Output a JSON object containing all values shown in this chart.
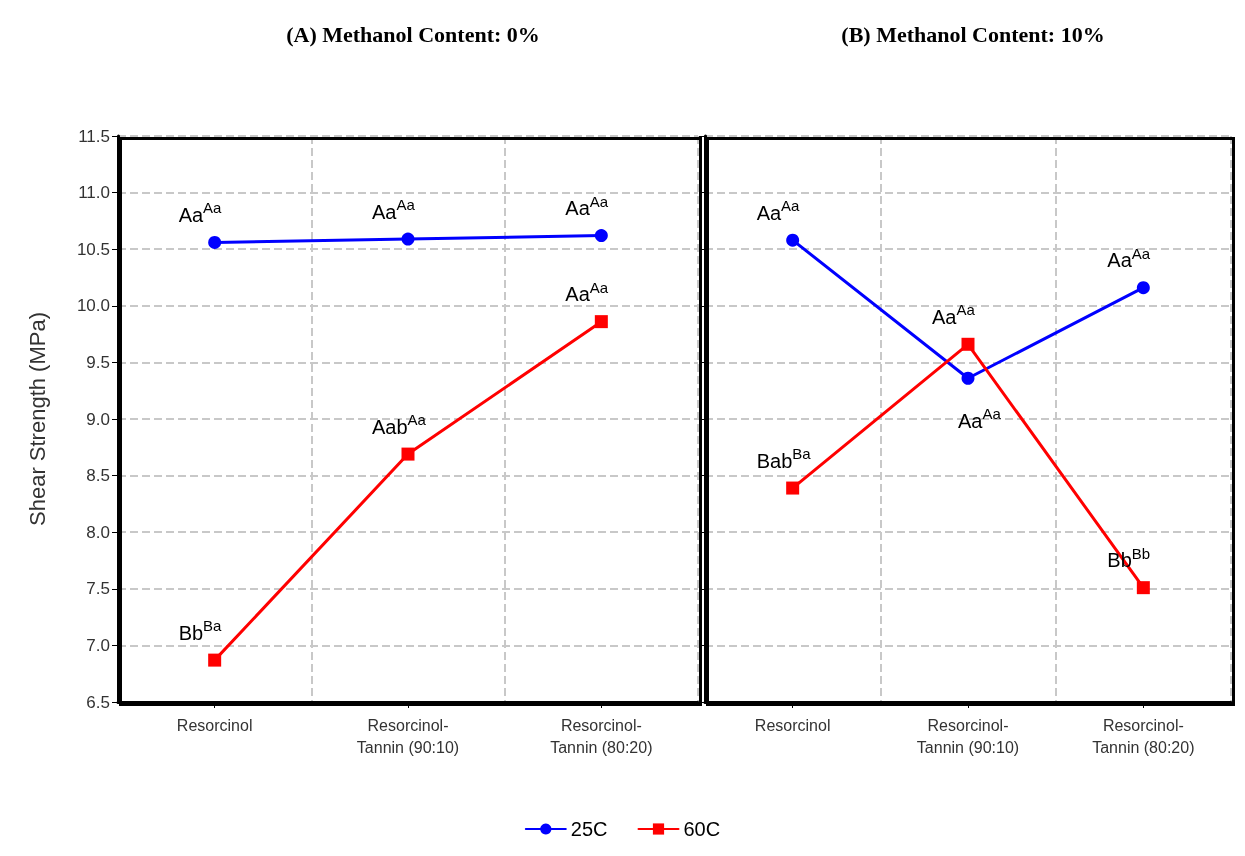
{
  "chart_data": [
    {
      "type": "line",
      "title": "(A) Methanol Content: 0%",
      "ylabel": "Shear Strength (MPa)",
      "categories": [
        "Resorcinol",
        "Resorcinol-\nTannin (90:10)",
        "Resorcinol-\nTannin (80:20)"
      ],
      "series": [
        {
          "name": "25C",
          "color": "#0000ff",
          "marker": "circle",
          "values": [
            10.56,
            10.59,
            10.62
          ]
        },
        {
          "name": "60C",
          "color": "#ff0000",
          "marker": "square",
          "values": [
            6.87,
            8.69,
            9.86
          ]
        }
      ],
      "ylim": [
        6.5,
        11.5
      ],
      "yticks": [
        6.5,
        {
          "value": 7,
          "label": "7.0"
        },
        7.5,
        {
          "value": 8,
          "label": "8.0"
        },
        8.5,
        {
          "value": 9,
          "label": "9.0"
        },
        9.5,
        {
          "value": 10,
          "label": "10.0"
        },
        10.5,
        {
          "value": 11,
          "label": "11.0"
        },
        11.5
      ],
      "grid": true,
      "legend": "bottom",
      "line_style": "solid",
      "annotations": [
        {
          "text": "Aa$^{Aa}$",
          "x": "Resorcinol",
          "y": 10.56
        },
        {
          "text": "Aa$^{Aa}$",
          "x": "Resorcinol-\nTannin (90:10)",
          "y": 10.59
        },
        {
          "text": "Aa$^{Aa}$",
          "x": "Resorcinol-\nTannin (80:20)",
          "y": 10.62
        },
        {
          "text": "Bb$^{Ba}$",
          "x": "Resorcinol",
          "y": 6.87
        },
        {
          "text": "Aab$^{Aa}$",
          "x": "Resorcinol-\nTannin (90:10)",
          "y": 8.69
        },
        {
          "text": "Aa$^{Aa}$",
          "x": "Resorcinol-\nTannin (80:20)",
          "y": 9.86
        }
      ]
    },
    {
      "type": "line",
      "title": "(B) Methanol Content: 10%",
      "categories": [
        "Resorcinol",
        "Resorcinol-\nTannin (90:10)",
        "Resorcinol-\nTannin (80:20)"
      ],
      "series": [
        {
          "name": "25C",
          "color": "#0000ff",
          "marker": "circle",
          "values": [
            10.58,
            9.36,
            10.16
          ]
        },
        {
          "name": "60C",
          "color": "#ff0000",
          "marker": "square",
          "values": [
            8.39,
            9.66,
            7.51
          ]
        }
      ],
      "ylim": [
        6.5,
        11.5
      ],
      "yticks": [
        6.5,
        7,
        7.5,
        8,
        8.5,
        9,
        9.5,
        10,
        10.5,
        11,
        11.5
      ],
      "tick_labels": "x",
      "grid": true,
      "legend": "bottom",
      "line_style": "solid",
      "annotations": [
        {
          "text": "Aa$^{Aa}$",
          "x": "Resorcinol",
          "y": 10.58
        },
        {
          "text": "Aa$^{Aa}$",
          "x": "Resorcinol-\nTannin (80:20)",
          "y": 10.16
        },
        {
          "text": "Aa$^{Aa}$",
          "x": "Resorcinol-\nTannin (90:10)",
          "y": 9.66
        },
        {
          "text": "Aa$^{Aa}$",
          "x": "Resorcinol-\nTannin (90:10)",
          "y": 9.36
        },
        {
          "text": "Bab$^{Ba}$",
          "x": "Resorcinol",
          "y": 8.39
        },
        {
          "text": "Bb$^{Bb}$",
          "x": "Resorcinol-\nTannin (80:20)",
          "y": 7.51
        }
      ]
    }
  ]
}
